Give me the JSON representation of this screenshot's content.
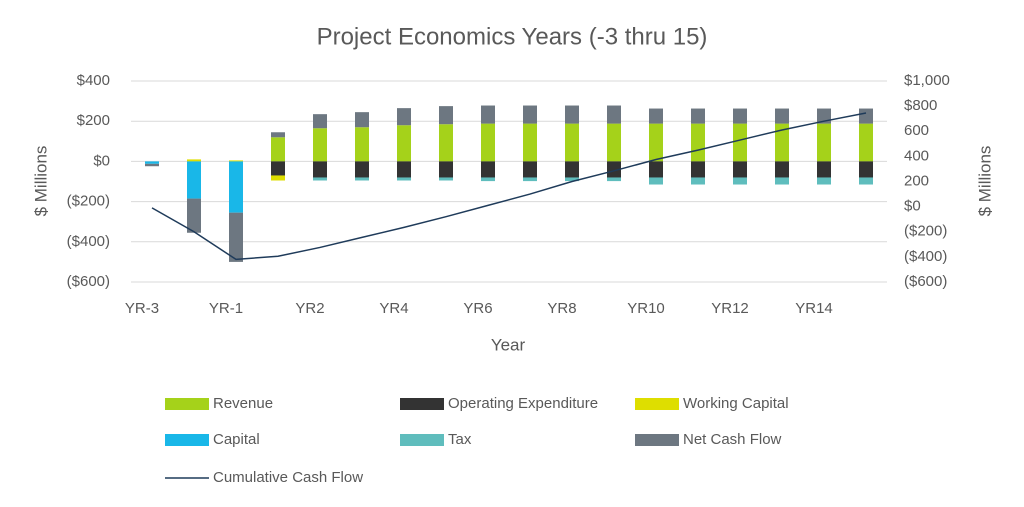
{
  "chart_data": {
    "type": "bar",
    "title": "Project Economics Years (-3 thru 15)",
    "x_label": "Year",
    "y_label": "$ Millions",
    "y2_label": "$ Millions",
    "categories": [
      "YR-3",
      null,
      "YR-1",
      null,
      "YR2",
      null,
      "YR4",
      null,
      "YR6",
      null,
      "YR8",
      null,
      "YR10",
      null,
      "YR12",
      null,
      "YR14",
      null
    ],
    "ylim": [
      -600,
      400
    ],
    "yticks": [
      {
        "value": -600,
        "label": "($600)"
      },
      {
        "value": -400,
        "label": "($400)"
      },
      {
        "value": -200,
        "label": "($200)"
      },
      {
        "value": 0,
        "label": "$0"
      },
      {
        "value": 200,
        "label": "$200"
      },
      {
        "value": 400,
        "label": "$400"
      }
    ],
    "y2lim": [
      -600,
      1000
    ],
    "y2ticks": [
      {
        "value": -600,
        "label": "($600)"
      },
      {
        "value": -400,
        "label": "($400)"
      },
      {
        "value": -200,
        "label": "($200)"
      },
      {
        "value": 0,
        "label": "$0"
      },
      {
        "value": 200,
        "label": "200"
      },
      {
        "value": 400,
        "label": "400"
      },
      {
        "value": 600,
        "label": "600"
      },
      {
        "value": 800,
        "label": "$800"
      },
      {
        "value": 1000,
        "label": "$1,000"
      }
    ],
    "grid": true,
    "stacked": true,
    "series": [
      {
        "name": "Revenue",
        "color": "#a5d21a",
        "values": [
          0,
          0,
          0,
          120,
          165,
          170,
          180,
          185,
          188,
          188,
          188,
          188,
          188,
          188,
          188,
          188,
          188,
          188
        ]
      },
      {
        "name": "Operating Expenditure",
        "color": "#333333",
        "values": [
          0,
          0,
          0,
          -70,
          -80,
          -80,
          -80,
          -80,
          -80,
          -80,
          -80,
          -80,
          -80,
          -80,
          -80,
          -80,
          -80,
          -80
        ]
      },
      {
        "name": "Working Capital",
        "color": "#dede00",
        "values": [
          0,
          10,
          5,
          -25,
          0,
          0,
          0,
          0,
          0,
          0,
          0,
          0,
          0,
          0,
          0,
          0,
          0,
          0
        ]
      },
      {
        "name": "Capital",
        "color": "#19b7e8",
        "values": [
          -12,
          -185,
          -255,
          0,
          0,
          0,
          0,
          0,
          0,
          0,
          0,
          0,
          0,
          0,
          0,
          0,
          0,
          0
        ]
      },
      {
        "name": "Tax",
        "color": "#5fbdbd",
        "values": [
          0,
          0,
          0,
          0,
          -15,
          -15,
          -15,
          -15,
          -18,
          -18,
          -18,
          -18,
          -35,
          -35,
          -35,
          -35,
          -35,
          -35
        ]
      },
      {
        "name": "Net Cash Flow",
        "color": "#6d7781",
        "values": [
          -12,
          -170,
          -245,
          25,
          70,
          75,
          85,
          90,
          90,
          90,
          90,
          90,
          75,
          75,
          75,
          75,
          75,
          75
        ]
      },
      {
        "name": "Cumulative Cash Flow",
        "color": "#1f3b5a",
        "type": "line",
        "axis": "y2",
        "values": [
          -10,
          -200,
          -420,
          -395,
          -325,
          -245,
          -165,
          -80,
          10,
          100,
          200,
          285,
          375,
          450,
          530,
          610,
          680,
          745
        ]
      }
    ]
  }
}
